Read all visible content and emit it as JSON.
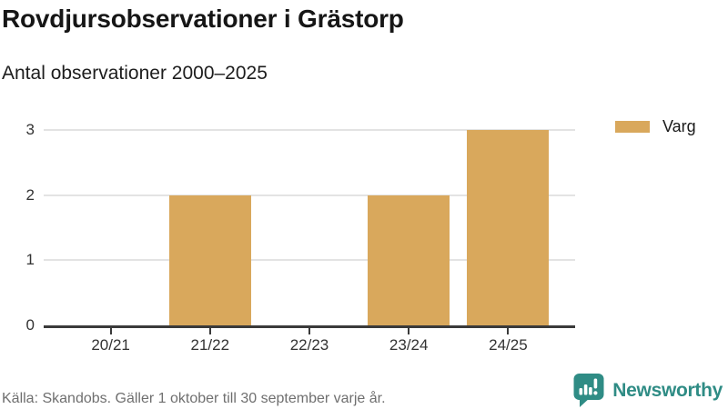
{
  "title": "Rovdjursobservationer i Grästorp",
  "subtitle": "Antal observationer 2000–2025",
  "legend": {
    "items": [
      {
        "label": "Varg",
        "color": "#d9a85c"
      }
    ]
  },
  "footer": {
    "source": "Källa: Skandobs. Gäller 1 oktober till 30 september varje år.",
    "brand": "Newsworthy"
  },
  "colors": {
    "bar_gold": "#d9a85c",
    "brand_teal": "#2f8c85",
    "axis_dark": "#3a3a3a",
    "gridline": "#e3e3e3",
    "text_dark": "#161616",
    "text_muted": "#6f6f6f"
  },
  "chart_data": {
    "type": "bar",
    "categories": [
      "20/21",
      "21/22",
      "22/23",
      "23/24",
      "24/25"
    ],
    "series": [
      {
        "name": "Varg",
        "values": [
          0,
          2,
          0,
          2,
          3
        ]
      }
    ],
    "title": "Rovdjursobservationer i Grästorp",
    "subtitle": "Antal observationer 2000–2025",
    "xlabel": "",
    "ylabel": "",
    "yticks": [
      0,
      1,
      2,
      3
    ],
    "ylim": [
      0,
      3
    ],
    "grid": true,
    "legend_position": "right-of-plot-top",
    "bar_color": "#d9a85c"
  }
}
